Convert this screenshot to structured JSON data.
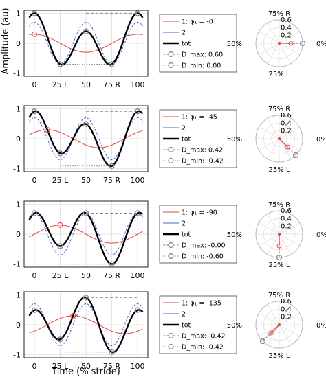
{
  "figure": {
    "ylabel": "Amplitude (au)",
    "xlabel": "Time (% stride)"
  },
  "chart_data": {
    "type": "line",
    "x_ticks": [
      "0",
      "25 L",
      "50",
      "75 R",
      "100"
    ],
    "y_ticks": [
      "-1",
      "0",
      "1"
    ],
    "xlim": [
      -10,
      110
    ],
    "ylim": [
      -1.1,
      1.1
    ],
    "polar_angle_labels": [
      "75% R",
      "50%",
      "0%",
      "25% L"
    ],
    "polar_r_ticks": [
      "0.2",
      "0.4",
      "0.6"
    ],
    "colors": {
      "h1": "#e8413c",
      "h2": "#4a5fd8",
      "tot": "#000000",
      "marker": "#888888",
      "polar_grid": "#e6e6e6"
    },
    "panels": [
      {
        "phi1": 0,
        "legend": [
          "1:  φ₁ = -0",
          "2",
          "tot",
          "D_max: 0.60",
          "D_min: 0.00"
        ],
        "dmax": 0.6,
        "dmin": 0.0,
        "polar_vector": {
          "angle_deg": 0,
          "radius": 0.6
        }
      },
      {
        "phi1": -45,
        "legend": [
          "1:  φ₁ = -45",
          "2",
          "tot",
          "D_max: 0.42",
          "D_min: -0.42"
        ],
        "dmax": 0.42,
        "dmin": -0.42,
        "polar_vector": {
          "angle_deg": -45,
          "radius": 0.6
        }
      },
      {
        "phi1": -90,
        "legend": [
          "1:  φ₁ = -90",
          "2",
          "tot",
          "D_max: -0.00",
          "D_min: -0.60"
        ],
        "dmax": -0.0,
        "dmin": -0.6,
        "polar_vector": {
          "angle_deg": -90,
          "radius": 0.6
        }
      },
      {
        "phi1": -135,
        "legend": [
          "1:  φ₁ = -135",
          "2",
          "tot",
          "D_max: -0.42",
          "D_min: -0.42"
        ],
        "dmax": -0.42,
        "dmin": -0.42,
        "polar_vector": {
          "angle_deg": -135,
          "radius": 0.6
        }
      }
    ]
  }
}
